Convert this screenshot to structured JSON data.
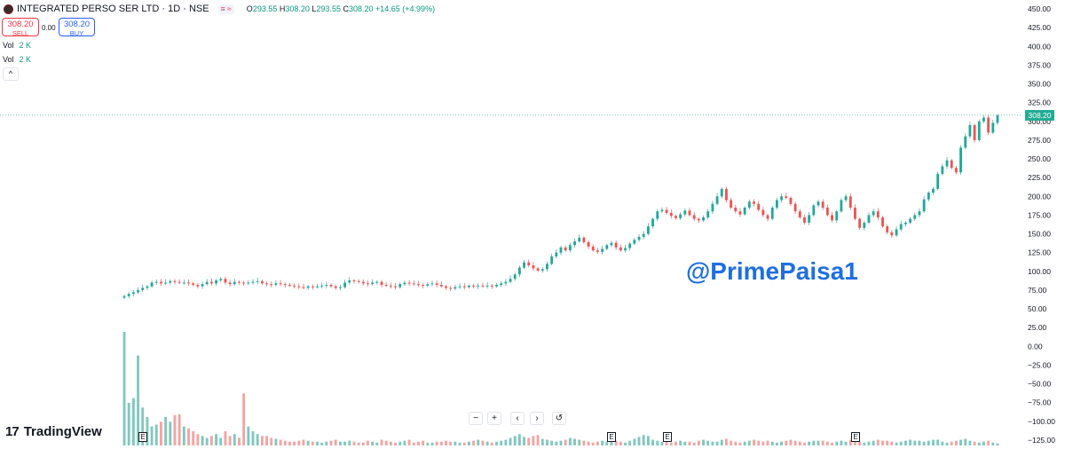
{
  "header": {
    "symbol": "INTEGRATED PERSO SER LTD · 1D · NSE",
    "pill_left": "≡",
    "pill_right": "≈",
    "ohlc": {
      "o_label": "O",
      "o_value": "293.55",
      "h_label": "H",
      "h_value": "308.20",
      "l_label": "L",
      "l_value": "293.55",
      "c_label": "C",
      "c_value": "308.20",
      "change": "+14.65 (+4.99%)"
    }
  },
  "trade": {
    "sell_price": "308.20",
    "sell_label": "SELL",
    "spread": "0.00",
    "buy_price": "308.20",
    "buy_label": "BUY"
  },
  "indicators": [
    {
      "label": "Vol",
      "value": "2 K"
    },
    {
      "label": "Vol",
      "value": "2 K"
    }
  ],
  "collapse_icon": "chevron-up-icon",
  "watermark": "@PrimePaisa1",
  "brand": {
    "mark": "17",
    "name": "TradingView"
  },
  "nav": [
    "−",
    "+",
    "‹",
    "›",
    "↺"
  ],
  "earnings_marker": "E",
  "colors": {
    "up": "#26a69a",
    "down": "#ef5350",
    "volume_up": "#7fc8be",
    "volume_down": "#f5a3a1",
    "price_tag": "#22ab94",
    "watermark": "#1f6fe0"
  },
  "chart_data": {
    "type": "candlestick",
    "title": "",
    "xlabel": "",
    "ylabel": "",
    "last_price": "308.20",
    "ylim": [
      -125,
      450
    ],
    "y_ticks": [
      "450.00",
      "425.00",
      "400.00",
      "375.00",
      "350.00",
      "325.00",
      "300.00",
      "275.00",
      "250.00",
      "225.00",
      "200.00",
      "175.00",
      "150.00",
      "125.00",
      "100.00",
      "75.00",
      "50.00",
      "25.00",
      "0.00",
      "−25.00",
      "−50.00",
      "−75.00",
      "−100.00",
      "−125.00"
    ],
    "close": [
      67,
      70,
      72,
      75,
      78,
      80,
      85,
      86,
      84,
      85,
      87,
      86,
      85,
      85,
      84,
      82,
      80,
      83,
      86,
      84,
      88,
      90,
      85,
      83,
      86,
      85,
      84,
      85,
      86,
      87,
      84,
      83,
      82,
      84,
      83,
      82,
      81,
      80,
      79,
      78,
      80,
      79,
      80,
      81,
      82,
      80,
      78,
      79,
      85,
      88,
      87,
      86,
      84,
      83,
      85,
      86,
      82,
      81,
      80,
      79,
      83,
      85,
      84,
      83,
      82,
      81,
      83,
      84,
      82,
      80,
      78,
      77,
      79,
      80,
      79,
      81,
      80,
      81,
      80,
      81,
      80,
      82,
      84,
      86,
      90,
      96,
      105,
      112,
      108,
      104,
      101,
      103,
      110,
      120,
      125,
      132,
      128,
      135,
      140,
      145,
      139,
      133,
      128,
      126,
      130,
      135,
      138,
      132,
      128,
      131,
      137,
      142,
      146,
      150,
      160,
      170,
      180,
      182,
      178,
      174,
      171,
      176,
      181,
      175,
      170,
      168,
      172,
      180,
      190,
      200,
      210,
      195,
      185,
      180,
      176,
      185,
      193,
      190,
      182,
      175,
      170,
      185,
      195,
      200,
      198,
      190,
      180,
      172,
      165,
      175,
      188,
      193,
      185,
      175,
      168,
      180,
      195,
      200,
      185,
      170,
      158,
      165,
      175,
      180,
      172,
      160,
      152,
      148,
      156,
      163,
      165,
      170,
      175,
      180,
      196,
      205,
      210,
      230,
      240,
      248,
      238,
      232,
      265,
      280,
      295,
      275,
      300,
      305,
      285,
      298,
      308
    ],
    "volume": [
      120,
      45,
      50,
      95,
      40,
      30,
      20,
      22,
      25,
      30,
      25,
      32,
      33,
      20,
      18,
      15,
      12,
      10,
      8,
      10,
      12,
      8,
      15,
      10,
      12,
      8,
      55,
      20,
      15,
      12,
      10,
      10,
      8,
      7,
      6,
      5,
      4,
      4,
      5,
      6,
      5,
      4,
      4,
      3,
      4,
      5,
      6,
      4,
      4,
      5,
      4,
      3,
      3,
      5,
      4,
      3,
      6,
      5,
      4,
      3,
      4,
      5,
      6,
      3,
      4,
      5,
      3,
      3,
      4,
      4,
      5,
      4,
      4,
      3,
      3,
      4,
      5,
      6,
      5,
      4,
      3,
      4,
      5,
      6,
      8,
      10,
      12,
      9,
      8,
      10,
      11,
      7,
      6,
      5,
      4,
      5,
      6,
      8,
      7,
      6,
      5,
      4,
      3,
      4,
      5,
      4,
      6,
      5,
      4,
      3,
      5,
      7,
      9,
      11,
      10,
      6,
      5,
      4,
      4,
      3,
      4,
      5,
      4,
      4,
      3,
      5,
      6,
      5,
      4,
      4,
      6,
      7,
      5,
      4,
      3,
      4,
      5,
      6,
      5,
      4,
      5,
      4,
      3,
      4,
      5,
      6,
      5,
      4,
      3,
      4,
      5,
      5,
      5,
      4,
      3,
      4,
      5,
      4,
      6,
      5,
      4,
      3,
      4,
      5,
      6,
      5,
      5,
      4,
      3,
      4,
      5,
      6,
      5,
      5,
      4,
      5,
      6,
      6,
      4,
      3,
      4,
      5,
      6,
      7,
      5,
      4,
      3,
      4,
      5,
      3,
      2
    ]
  }
}
